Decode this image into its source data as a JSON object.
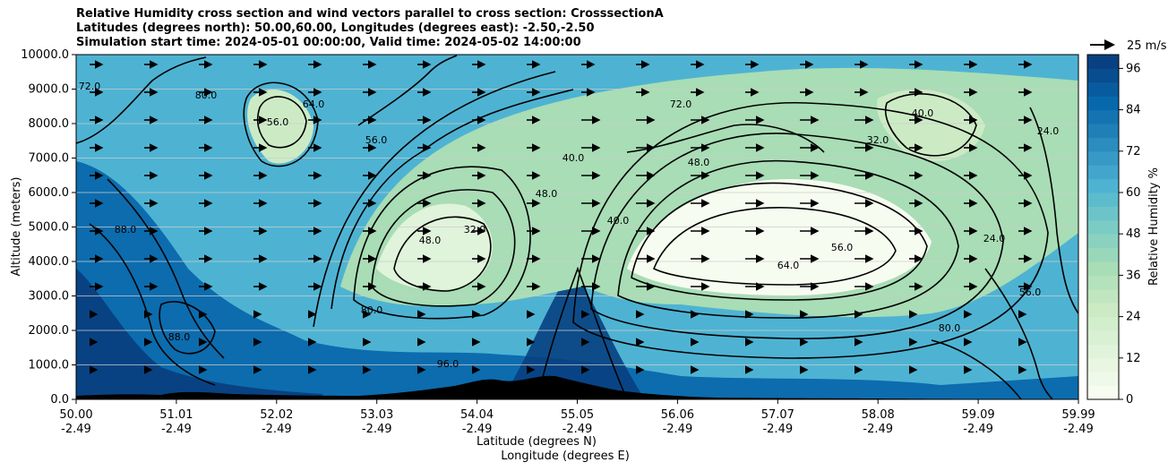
{
  "title_lines": [
    "Relative Humidity cross section and wind vectors parallel to cross section: CrosssectionA",
    "Latitudes (degrees north): 50.00,60.00, Longitudes (degrees east): -2.50,-2.50",
    "Simulation start time: 2024-05-01 00:00:00, Valid time: 2024-05-02 14:00:00"
  ],
  "chart_data": {
    "type": "heatmap",
    "ylabel": "Altitude (meters)",
    "xlabel_line1": "Latitude (degrees N)",
    "xlabel_line2": "Longitude (degrees E)",
    "ylim": [
      0,
      10000
    ],
    "y_ticks": [
      "0.0",
      "1000.0",
      "2000.0",
      "3000.0",
      "4000.0",
      "5000.0",
      "6000.0",
      "7000.0",
      "8000.0",
      "9000.0",
      "10000.0"
    ],
    "x_tick_lat": [
      "50.00",
      "51.01",
      "52.02",
      "53.03",
      "54.04",
      "55.05",
      "56.06",
      "57.07",
      "58.08",
      "59.09",
      "59.99"
    ],
    "x_tick_lon": [
      "-2.49",
      "-2.49",
      "-2.49",
      "-2.49",
      "-2.49",
      "-2.49",
      "-2.49",
      "-2.49",
      "-2.49",
      "-2.49",
      "-2.49"
    ],
    "colorbar": {
      "label": "Relative Humidity %",
      "range": [
        0,
        100
      ],
      "ticks": [
        "0",
        "12",
        "24",
        "36",
        "48",
        "60",
        "72",
        "84",
        "96"
      ],
      "palette": [
        "#f7fcf0",
        "#e0f3db",
        "#ccebc5",
        "#a8ddb5",
        "#7bccc4",
        "#4eb3d3",
        "#2b8cbe",
        "#0868ac",
        "#084081"
      ]
    },
    "grid": "horizontal",
    "wind_reference": "25 m/s",
    "contour_labels": [
      "16.0",
      "24.0",
      "32.0",
      "40.0",
      "48.0",
      "56.0",
      "64.0",
      "72.0",
      "80.0",
      "88.0",
      "96.0"
    ]
  }
}
